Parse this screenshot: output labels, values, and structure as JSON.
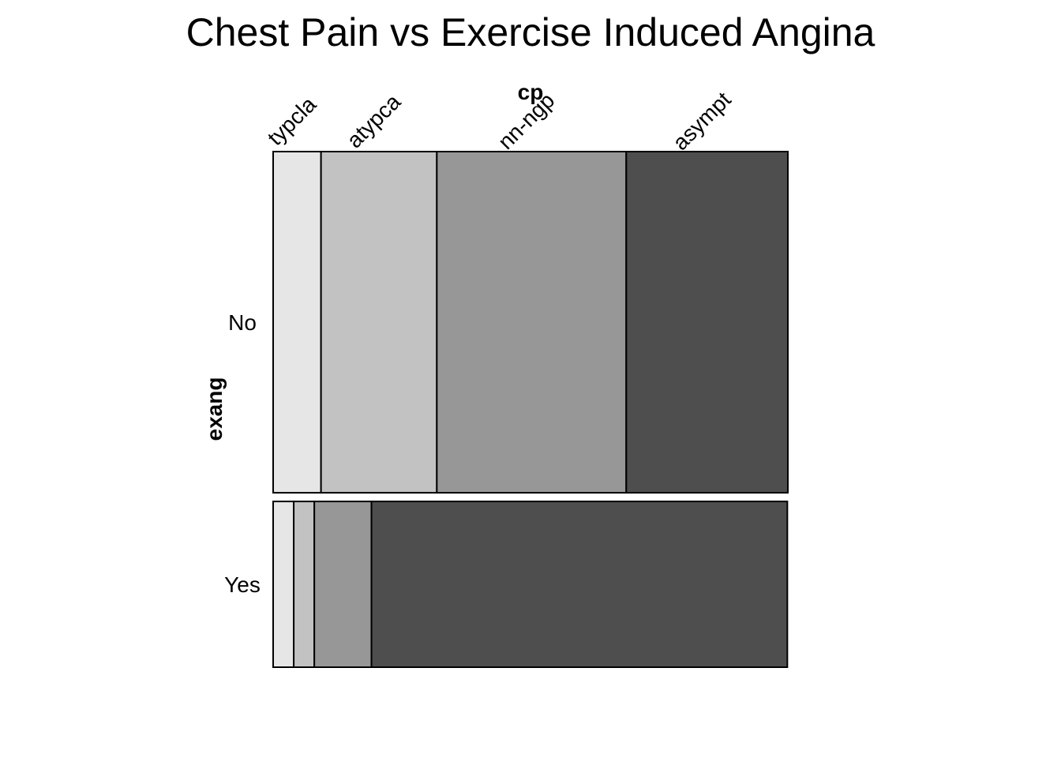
{
  "chart_data": {
    "type": "mosaic",
    "title": "Chest Pain vs Exercise Induced Angina",
    "x_variable": "cp",
    "y_variable": "exang",
    "x_categories": [
      "typcla",
      "atypca",
      "nn-ngp",
      "asympt"
    ],
    "y_categories": [
      "No",
      "Yes"
    ],
    "row_proportions": [
      0.673,
      0.327
    ],
    "conditional_proportions": {
      "No": [
        0.093,
        0.225,
        0.368,
        0.314
      ],
      "Yes": [
        0.04,
        0.04,
        0.111,
        0.808
      ]
    },
    "fills": [
      "#E6E6E6",
      "#C2C2C2",
      "#979797",
      "#4E4E4E"
    ],
    "outline": "#000000"
  }
}
